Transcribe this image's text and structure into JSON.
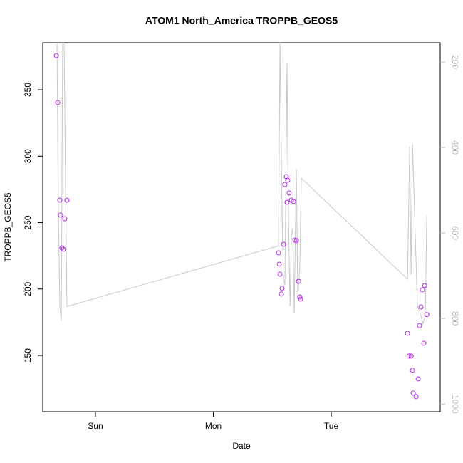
{
  "chart_data": {
    "type": "scatter",
    "title": "ATOM1 North_America TROPPB_GEOS5",
    "x_label": "Date",
    "y_label": "TROPPB_GEOS5",
    "xlim": [
      -0.447,
      2.924
    ],
    "xticks": [
      {
        "value": 0,
        "label": "Sun"
      },
      {
        "value": 1,
        "label": "Mon"
      },
      {
        "value": 2,
        "label": "Tue"
      }
    ],
    "ylim": [
      107.7,
      385.4
    ],
    "yticks": [
      150,
      200,
      250,
      300,
      350
    ],
    "y2lim": [
      1018,
      155
    ],
    "y2ticks": [
      200,
      400,
      600,
      800,
      1000
    ],
    "y2_color": "#bbbbbb",
    "series": [
      {
        "color": "#b428e6",
        "x": [
          -0.332,
          -0.32,
          -0.302,
          -0.296,
          -0.284,
          -0.272,
          -0.26,
          -0.242,
          1.553,
          1.559,
          1.565,
          1.577,
          1.583,
          1.595,
          1.607,
          1.619,
          1.631,
          1.625,
          1.643,
          1.662,
          1.68,
          1.692,
          1.704,
          1.722,
          1.734,
          1.74,
          2.647,
          2.659,
          2.677,
          2.689,
          2.695,
          2.719,
          2.737,
          2.749,
          2.761,
          2.773,
          2.792,
          2.785,
          2.81
        ],
        "values": [
          375.7,
          340.4,
          266.9,
          255.7,
          231.0,
          230.0,
          253.0,
          266.9,
          227.3,
          218.7,
          211.2,
          196.2,
          200.5,
          233.7,
          278.7,
          284.6,
          281.9,
          265.3,
          272.3,
          266.9,
          265.9,
          236.9,
          236.4,
          205.8,
          194.1,
          192.4,
          166.7,
          149.6,
          149.6,
          138.9,
          121.7,
          119.0,
          132.4,
          172.6,
          186.5,
          199.4,
          202.6,
          159.2,
          180.8
        ]
      },
      {
        "type": "line",
        "axis": "y2",
        "color": "#c8c8c8",
        "x": [
          -0.326,
          -0.314,
          -0.302,
          -0.29,
          -0.278,
          -0.266,
          -0.242,
          1.553,
          1.565,
          1.583,
          1.595,
          1.607,
          1.625,
          1.637,
          1.65,
          1.662,
          1.674,
          1.686,
          1.704,
          1.716,
          1.734,
          1.746,
          2.647,
          2.665,
          2.677,
          2.689,
          2.707,
          2.731,
          2.755,
          2.779,
          2.798,
          2.81
        ],
        "values": [
          158,
          555,
          772,
          805,
          155,
          155,
          772,
          630,
          155,
          555,
          705,
          722,
          202,
          555,
          772,
          605,
          588,
          788,
          450,
          755,
          672,
          472,
          708,
          397,
          697,
          392,
          555,
          772,
          788,
          813,
          788,
          560
        ]
      }
    ]
  }
}
